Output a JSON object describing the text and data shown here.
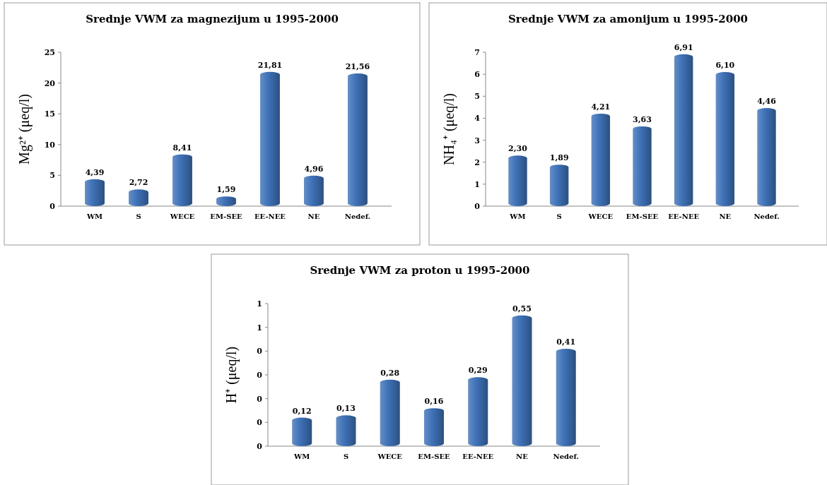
{
  "chart_data": [
    {
      "type": "bar",
      "title": "Srednje VWM za magnezijum u 1995-2000",
      "ylabel": "Mg²⁺ (μeq/l)",
      "categories": [
        "WM",
        "S",
        "WECE",
        "EM-SEE",
        "EE-NEE",
        "NE",
        "Nedef."
      ],
      "values": [
        4.39,
        2.72,
        8.41,
        1.59,
        21.81,
        4.96,
        21.56
      ],
      "value_labels": [
        "4,39",
        "2,72",
        "8,41",
        "1,59",
        "21,81",
        "4,96",
        "21,56"
      ],
      "color": "#3f72b8",
      "ylim": [
        0,
        25
      ],
      "yticks": [
        0,
        5,
        10,
        15,
        20,
        25
      ]
    },
    {
      "type": "bar",
      "title": "Srednje VWM za amonijum u 1995-2000",
      "ylabel": "NH₄⁺ (μeq/l)",
      "categories": [
        "WM",
        "S",
        "WECE",
        "EM-SEE",
        "EE-NEE",
        "NE",
        "Nedef."
      ],
      "values": [
        2.3,
        1.89,
        4.21,
        3.63,
        6.91,
        6.1,
        4.46
      ],
      "value_labels": [
        "2,30",
        "1,89",
        "4,21",
        "3,63",
        "6,91",
        "6,10",
        "4,46"
      ],
      "color": "#3f72b8",
      "ylim": [
        0,
        7
      ],
      "yticks": [
        0,
        1,
        2,
        3,
        4,
        5,
        6,
        7
      ]
    },
    {
      "type": "bar",
      "title": "Srednje VWM za proton u 1995-2000",
      "ylabel": "H⁺ (μeq/l)",
      "categories": [
        "WM",
        "S",
        "WECE",
        "EM-SEE",
        "EE-NEE",
        "NE",
        "Nedef."
      ],
      "values": [
        0.12,
        0.13,
        0.28,
        0.16,
        0.29,
        0.55,
        0.41
      ],
      "value_labels": [
        "0,12",
        "0,13",
        "0,28",
        "0,16",
        "0,29",
        "0,55",
        "0,41"
      ],
      "color": "#3f72b8",
      "ylim": [
        0,
        0.6
      ],
      "yticks": [
        {
          "value": 0,
          "label": "0"
        },
        {
          "value": 0.1,
          "label": "0"
        },
        {
          "value": 0.2,
          "label": "0"
        },
        {
          "value": 0.3,
          "label": "0"
        },
        {
          "value": 0.4,
          "label": "0"
        },
        {
          "value": 0.5,
          "label": "1"
        },
        {
          "value": 0.6,
          "label": "1"
        }
      ]
    }
  ]
}
